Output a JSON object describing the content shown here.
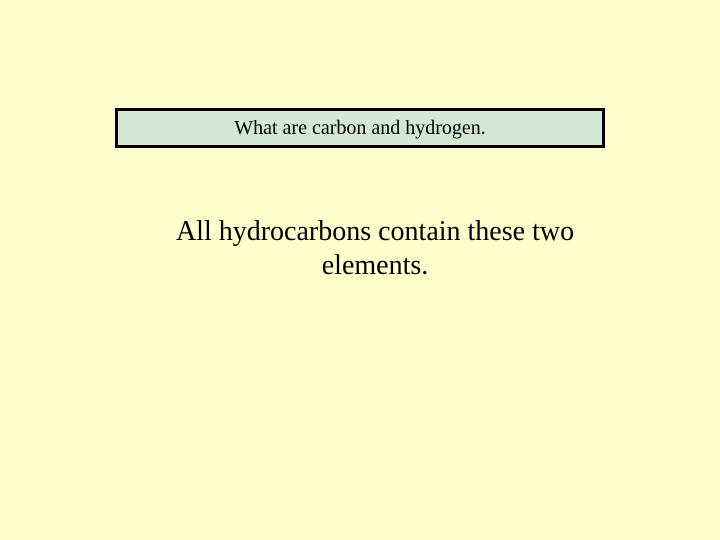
{
  "slide": {
    "background_color": "#ffffcc",
    "answer_box": {
      "text": "What are carbon and hydrogen.",
      "background_color": "#d4e8d4",
      "border_color": "#000000",
      "border_width": 3,
      "font_size": 20,
      "font_family": "Times New Roman"
    },
    "question": {
      "text": "All hydrocarbons contain these two elements.",
      "font_size": 28,
      "font_family": "Times New Roman",
      "color": "#000000"
    }
  }
}
